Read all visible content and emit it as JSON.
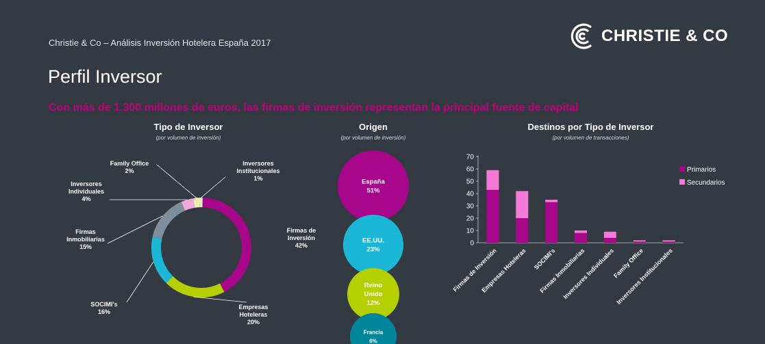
{
  "header": {
    "subtitle": "Christie & Co – Análisis Inversión Hotelera España 2017",
    "page_title": "Perfil Inversor",
    "headline": "Con más de 1.300 millones de euros, las firmas de inversión representan la principal fuente de capital",
    "logo_text": "CHRISTIE & CO"
  },
  "colors": {
    "background": "#333a42",
    "headline": "#c0007a",
    "firmas_inversion": "#a8068a",
    "empresas_hoteleras": "#b5d000",
    "socimis": "#1ab8d6",
    "firmas_inmobiliarias": "#7e8e9c",
    "inversores_individuales": "#f0a8dc",
    "family_office": "#f3f0b0",
    "institucionales": "#e8e8d0",
    "primarios": "#a8068a",
    "secundarios": "#f47ad8"
  },
  "chart_data": [
    {
      "type": "pie",
      "title": "Tipo de Inversor",
      "subtitle": "(por volumen de inversión)",
      "slices": [
        {
          "label": [
            "Firmas de",
            "Inversión"
          ],
          "pct_text": "42%",
          "value": 42
        },
        {
          "label": [
            "Empresas",
            "Hoteleras"
          ],
          "pct_text": "20%",
          "value": 20
        },
        {
          "label": [
            "SOCIMI's"
          ],
          "pct_text": "16%",
          "value": 16
        },
        {
          "label": [
            "Firmas",
            "Inmobiliarias"
          ],
          "pct_text": "15%",
          "value": 15
        },
        {
          "label": [
            "Inversores",
            "Individuales"
          ],
          "pct_text": "4%",
          "value": 4
        },
        {
          "label": [
            "Family Office"
          ],
          "pct_text": "2%",
          "value": 2
        },
        {
          "label": [
            "Inversores",
            "Institucionales"
          ],
          "pct_text": "1%",
          "value": 1
        }
      ]
    },
    {
      "type": "bubble",
      "title": "Origen",
      "subtitle": "(por volumen de inversión)",
      "items": [
        {
          "label": [
            "España"
          ],
          "pct_text": "51%",
          "value": 51
        },
        {
          "label": [
            "EE.UU."
          ],
          "pct_text": "23%",
          "value": 23
        },
        {
          "label": [
            "Reino",
            "Unido"
          ],
          "pct_text": "12%",
          "value": 12
        },
        {
          "label": [
            "Francia"
          ],
          "pct_text": "6%",
          "value": 6
        }
      ]
    },
    {
      "type": "bar",
      "stacked": true,
      "title": "Destinos por Tipo de Inversor",
      "subtitle": "(por volumen de transacciones)",
      "categories": [
        "Firmas de Inversión",
        "Empresas Hoteleras",
        "SOCIMI's",
        "Firmas Inmobiliarias",
        "Inversores Individuales",
        "Family Office",
        "Inversores Institucionales"
      ],
      "series": [
        {
          "name": "Primarios",
          "values": [
            43,
            20,
            33,
            8,
            4,
            1,
            1
          ]
        },
        {
          "name": "Secundarios",
          "values": [
            16,
            22,
            2,
            2,
            5,
            1,
            1
          ]
        }
      ],
      "ylim": [
        0,
        70
      ],
      "yticks": [
        "0",
        "10",
        "20",
        "30",
        "40",
        "50",
        "60",
        "70"
      ],
      "legend": "right"
    }
  ]
}
